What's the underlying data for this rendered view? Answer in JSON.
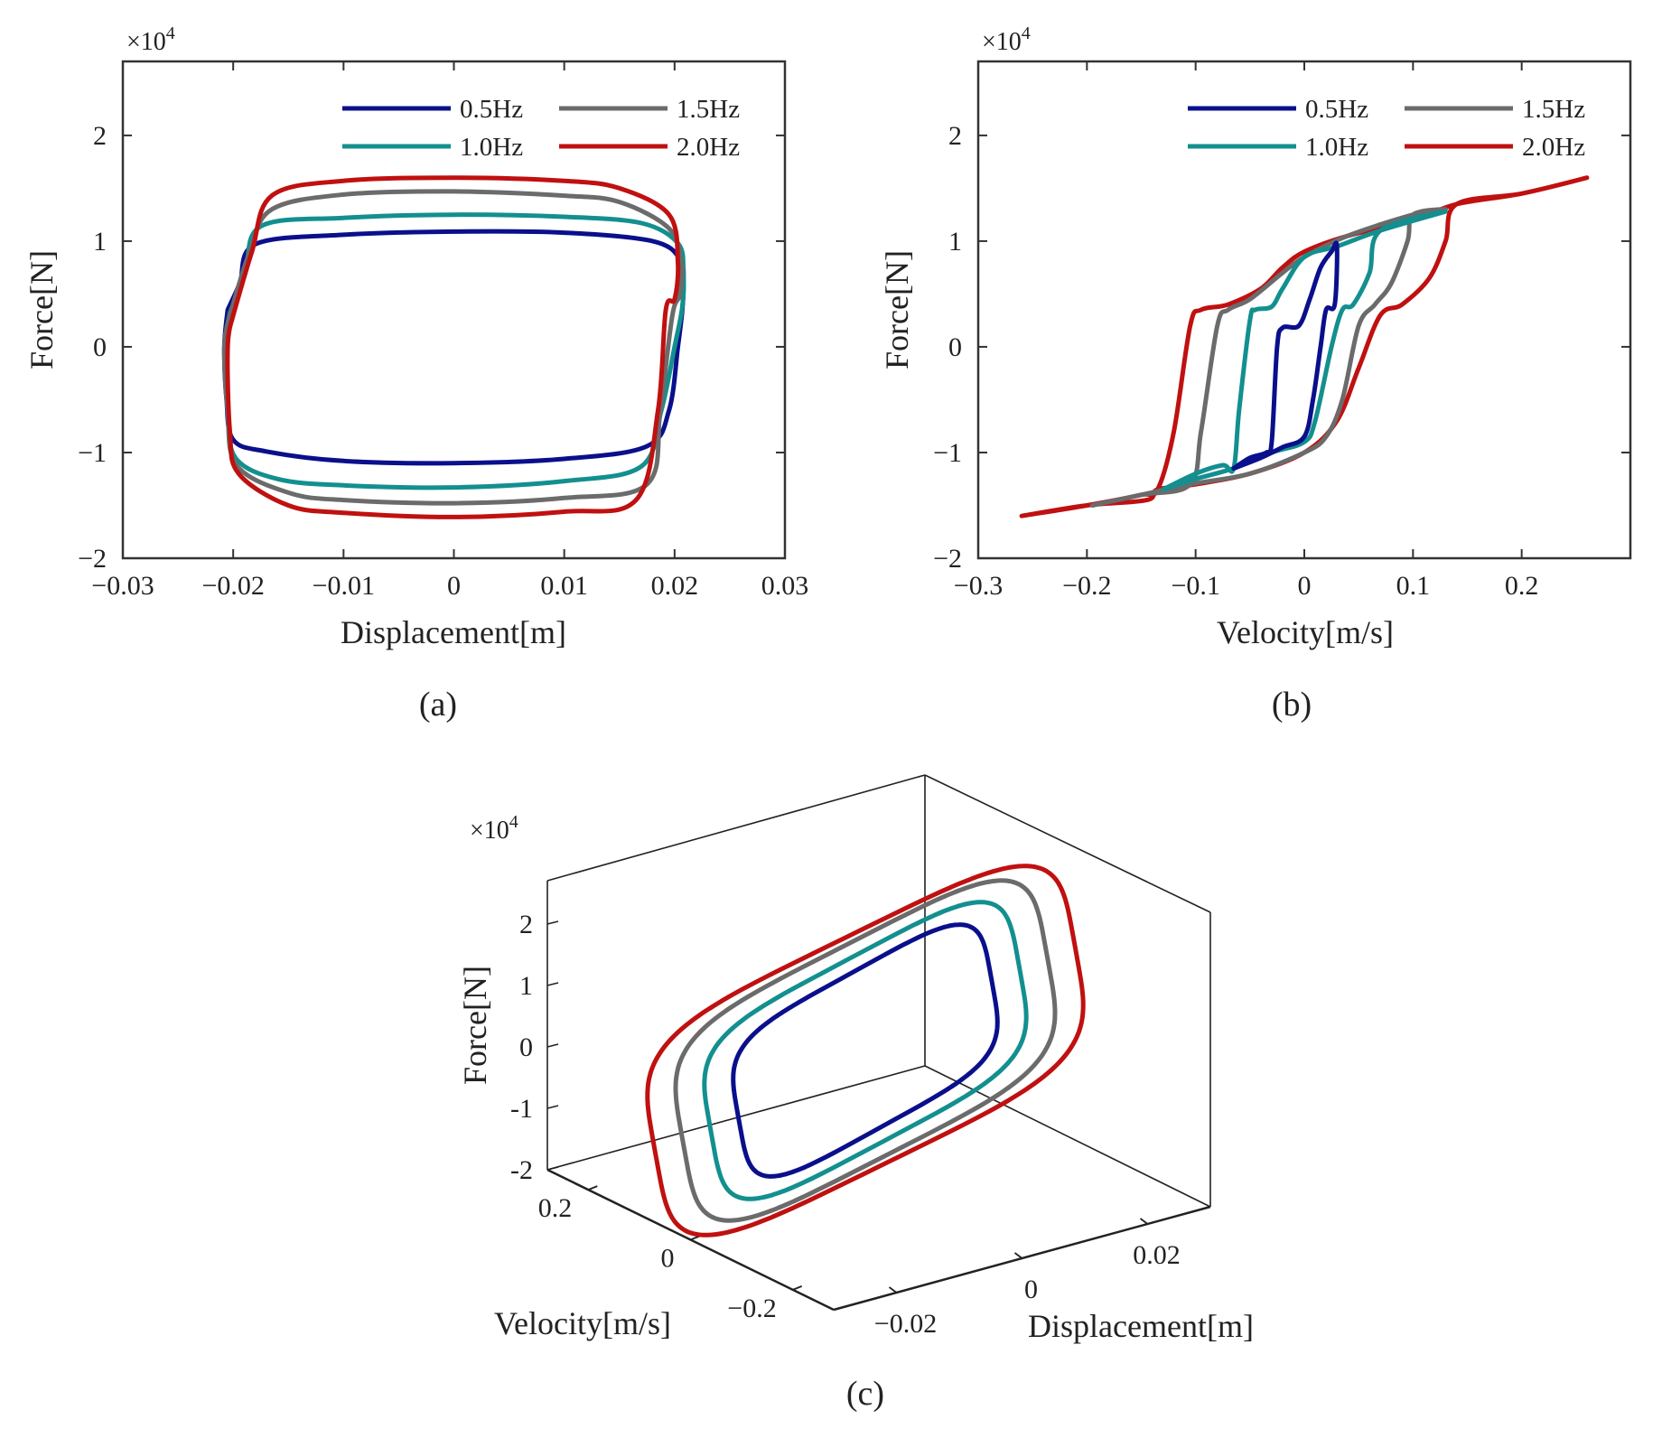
{
  "chart_data": [
    {
      "id": "a",
      "type": "line",
      "panel_label": "(a)",
      "xlabel": "Displacement[m]",
      "ylabel": "Force[N]",
      "exponent_label": "×10",
      "exponent_power": "4",
      "xlim": [
        -0.03,
        0.03
      ],
      "ylim": [
        -2,
        2.7
      ],
      "xticks": [
        -0.03,
        -0.02,
        -0.01,
        0,
        0.01,
        0.02,
        0.03
      ],
      "xtick_labels": [
        "−0.03",
        "−0.02",
        "−0.01",
        "0",
        "0.01",
        "0.02",
        "0.03"
      ],
      "yticks": [
        -2,
        -1,
        0,
        1,
        2
      ],
      "ytick_labels": [
        "−2",
        "−1",
        "0",
        "1",
        "2"
      ],
      "legend": [
        "0.5Hz",
        "1.0Hz",
        "1.5Hz",
        "2.0Hz"
      ],
      "legend_position": "top-right",
      "y_unit_note": "Force values in units of 10^4 N",
      "series": [
        {
          "name": "0.5Hz",
          "color": "#0a0f8c",
          "points": [
            [
              -0.0205,
              0.35
            ],
            [
              -0.0208,
              0
            ],
            [
              -0.0206,
              -0.5
            ],
            [
              -0.02,
              -0.88
            ],
            [
              -0.017,
              -0.99
            ],
            [
              -0.01,
              -1.08
            ],
            [
              0,
              -1.1
            ],
            [
              0.01,
              -1.06
            ],
            [
              0.0175,
              -0.94
            ],
            [
              0.0195,
              -0.6
            ],
            [
              0.0203,
              0
            ],
            [
              0.0207,
              0.35
            ],
            [
              0.0208,
              0.6
            ],
            [
              0.0205,
              0.83
            ],
            [
              0.018,
              1.0
            ],
            [
              0.01,
              1.08
            ],
            [
              0,
              1.09
            ],
            [
              -0.01,
              1.06
            ],
            [
              -0.018,
              0.97
            ],
            [
              -0.0194,
              0.6
            ],
            [
              -0.0205,
              0.35
            ]
          ]
        },
        {
          "name": "1.0Hz",
          "color": "#138f8f",
          "points": [
            [
              -0.0203,
              0.32
            ],
            [
              -0.0208,
              0
            ],
            [
              -0.0205,
              -0.6
            ],
            [
              -0.0198,
              -1.05
            ],
            [
              -0.016,
              -1.25
            ],
            [
              -0.01,
              -1.31
            ],
            [
              0,
              -1.33
            ],
            [
              0.01,
              -1.27
            ],
            [
              0.017,
              -1.13
            ],
            [
              0.0188,
              -0.6
            ],
            [
              0.02,
              0
            ],
            [
              0.0207,
              0.38
            ],
            [
              0.0208,
              0.7
            ],
            [
              0.0203,
              0.98
            ],
            [
              0.017,
              1.17
            ],
            [
              0.01,
              1.23
            ],
            [
              0,
              1.25
            ],
            [
              -0.01,
              1.22
            ],
            [
              -0.0175,
              1.14
            ],
            [
              -0.0189,
              0.7
            ],
            [
              -0.0203,
              0.32
            ]
          ]
        },
        {
          "name": "1.5Hz",
          "color": "#6b6b6b",
          "points": [
            [
              -0.0203,
              0.3
            ],
            [
              -0.0208,
              0
            ],
            [
              -0.0205,
              -0.6
            ],
            [
              -0.0197,
              -1.12
            ],
            [
              -0.015,
              -1.38
            ],
            [
              -0.01,
              -1.45
            ],
            [
              0,
              -1.48
            ],
            [
              0.01,
              -1.43
            ],
            [
              0.0175,
              -1.3
            ],
            [
              0.0187,
              -0.6
            ],
            [
              0.0198,
              0.3
            ],
            [
              0.0205,
              0.5
            ],
            [
              0.0206,
              0.8
            ],
            [
              0.0195,
              1.12
            ],
            [
              0.015,
              1.37
            ],
            [
              0.01,
              1.43
            ],
            [
              0,
              1.47
            ],
            [
              -0.01,
              1.44
            ],
            [
              -0.0165,
              1.3
            ],
            [
              -0.0185,
              0.9
            ],
            [
              -0.0203,
              0.3
            ]
          ]
        },
        {
          "name": "2.0Hz",
          "color": "#c01010",
          "points": [
            [
              -0.02,
              0.3
            ],
            [
              -0.0205,
              0
            ],
            [
              -0.0203,
              -0.8
            ],
            [
              -0.0195,
              -1.2
            ],
            [
              -0.015,
              -1.5
            ],
            [
              -0.01,
              -1.57
            ],
            [
              0,
              -1.61
            ],
            [
              0.01,
              -1.56
            ],
            [
              0.0165,
              -1.45
            ],
            [
              0.0185,
              -0.6
            ],
            [
              0.0192,
              0.35
            ],
            [
              0.02,
              0.45
            ],
            [
              0.0203,
              0.8
            ],
            [
              0.0195,
              1.25
            ],
            [
              0.015,
              1.5
            ],
            [
              0.01,
              1.57
            ],
            [
              0,
              1.6
            ],
            [
              -0.01,
              1.57
            ],
            [
              -0.0165,
              1.43
            ],
            [
              -0.0183,
              0.9
            ],
            [
              -0.02,
              0.3
            ]
          ]
        }
      ]
    },
    {
      "id": "b",
      "type": "line",
      "panel_label": "(b)",
      "xlabel": "Velocity[m/s]",
      "ylabel": "Force[N]",
      "exponent_label": "×10",
      "exponent_power": "4",
      "xlim": [
        -0.3,
        0.3
      ],
      "ylim": [
        -2,
        2.7
      ],
      "xticks": [
        -0.3,
        -0.2,
        -0.1,
        0,
        0.1,
        0.2
      ],
      "xtick_labels": [
        "−0.3",
        "−0.2",
        "−0.1",
        "0",
        "0.1",
        "0.2"
      ],
      "yticks": [
        -2,
        -1,
        0,
        1,
        2
      ],
      "ytick_labels": [
        "−2",
        "−1",
        "0",
        "1",
        "2"
      ],
      "legend": [
        "0.5Hz",
        "1.0Hz",
        "1.5Hz",
        "2.0Hz"
      ],
      "legend_position": "top-right",
      "y_unit_note": "Force values in units of 10^4 N",
      "series": [
        {
          "name": "2.0Hz",
          "color": "#c01010",
          "points": [
            [
              -0.26,
              -1.6
            ],
            [
              -0.2,
              -1.5
            ],
            [
              -0.15,
              -1.4
            ],
            [
              -0.135,
              -1.35
            ],
            [
              -0.12,
              -0.8
            ],
            [
              -0.105,
              0.2
            ],
            [
              -0.095,
              0.35
            ],
            [
              -0.07,
              0.4
            ],
            [
              -0.04,
              0.55
            ],
            [
              -0.02,
              0.75
            ],
            [
              0,
              0.9
            ],
            [
              0.04,
              1.05
            ],
            [
              0.1,
              1.2
            ],
            [
              0.14,
              1.35
            ],
            [
              0.2,
              1.45
            ],
            [
              0.26,
              1.6
            ],
            [
              0.2,
              1.45
            ],
            [
              0.14,
              1.35
            ],
            [
              0.13,
              1.0
            ],
            [
              0.115,
              0.65
            ],
            [
              0.09,
              0.4
            ],
            [
              0.07,
              0.3
            ],
            [
              0.05,
              -0.2
            ],
            [
              0.03,
              -0.7
            ],
            [
              0,
              -1.0
            ],
            [
              -0.05,
              -1.2
            ],
            [
              -0.1,
              -1.3
            ],
            [
              -0.135,
              -1.35
            ],
            [
              -0.145,
              -1.45
            ],
            [
              -0.2,
              -1.5
            ],
            [
              -0.26,
              -1.6
            ]
          ]
        },
        {
          "name": "1.5Hz",
          "color": "#6b6b6b",
          "points": [
            [
              -0.195,
              -1.5
            ],
            [
              -0.15,
              -1.4
            ],
            [
              -0.105,
              -1.3
            ],
            [
              -0.095,
              -0.8
            ],
            [
              -0.08,
              0.2
            ],
            [
              -0.07,
              0.35
            ],
            [
              -0.05,
              0.45
            ],
            [
              -0.02,
              0.7
            ],
            [
              0,
              0.85
            ],
            [
              0.04,
              1.05
            ],
            [
              0.1,
              1.25
            ],
            [
              0.13,
              1.3
            ],
            [
              0.1,
              1.25
            ],
            [
              0.095,
              1.0
            ],
            [
              0.08,
              0.6
            ],
            [
              0.065,
              0.4
            ],
            [
              0.05,
              0.2
            ],
            [
              0.035,
              -0.5
            ],
            [
              0.02,
              -0.85
            ],
            [
              0,
              -1.0
            ],
            [
              -0.05,
              -1.2
            ],
            [
              -0.105,
              -1.3
            ],
            [
              -0.15,
              -1.4
            ],
            [
              -0.195,
              -1.5
            ]
          ]
        },
        {
          "name": "1.0Hz",
          "color": "#138f8f",
          "points": [
            [
              -0.13,
              -1.35
            ],
            [
              -0.1,
              -1.2
            ],
            [
              -0.075,
              -1.12
            ],
            [
              -0.065,
              -1.15
            ],
            [
              -0.06,
              -0.6
            ],
            [
              -0.05,
              0.25
            ],
            [
              -0.045,
              0.35
            ],
            [
              -0.03,
              0.38
            ],
            [
              -0.02,
              0.55
            ],
            [
              0,
              0.85
            ],
            [
              0.03,
              0.95
            ],
            [
              0.07,
              1.1
            ],
            [
              0.13,
              1.28
            ],
            [
              0.07,
              1.1
            ],
            [
              0.06,
              0.7
            ],
            [
              0.045,
              0.4
            ],
            [
              0.035,
              0.35
            ],
            [
              0.025,
              0.0
            ],
            [
              0.01,
              -0.7
            ],
            [
              0,
              -0.9
            ],
            [
              -0.03,
              -1.0
            ],
            [
              -0.065,
              -1.15
            ],
            [
              -0.1,
              -1.25
            ],
            [
              -0.13,
              -1.35
            ]
          ]
        },
        {
          "name": "0.5Hz",
          "color": "#0a0f8c",
          "points": [
            [
              -0.065,
              -1.15
            ],
            [
              -0.05,
              -1.05
            ],
            [
              -0.035,
              -1.0
            ],
            [
              -0.03,
              -0.9
            ],
            [
              -0.025,
              0.0
            ],
            [
              -0.02,
              0.18
            ],
            [
              -0.005,
              0.2
            ],
            [
              0.005,
              0.45
            ],
            [
              0.015,
              0.75
            ],
            [
              0.025,
              0.9
            ],
            [
              0.03,
              0.95
            ],
            [
              0.028,
              0.4
            ],
            [
              0.02,
              0.35
            ],
            [
              0.015,
              0.0
            ],
            [
              0.008,
              -0.5
            ],
            [
              0,
              -0.85
            ],
            [
              -0.02,
              -0.95
            ],
            [
              -0.04,
              -1.05
            ],
            [
              -0.065,
              -1.15
            ]
          ]
        }
      ]
    },
    {
      "id": "c",
      "type": "line",
      "panel_label": "(c)",
      "xlabel": "Displacement[m]",
      "ylabel": "Force[N]",
      "zlabel": "Velocity[m/s]",
      "exponent_label": "×10",
      "exponent_power": "4",
      "force_ticks": [
        -2,
        -1,
        0,
        1,
        2
      ],
      "force_tick_labels": [
        "-2",
        "-1",
        "0",
        "1",
        "2"
      ],
      "displacement_ticks": [
        -0.02,
        0,
        0.02
      ],
      "displacement_tick_labels": [
        "−0.02",
        "0",
        "0.02"
      ],
      "velocity_ticks": [
        0.2,
        0,
        -0.2
      ],
      "velocity_tick_labels": [
        "0.2",
        "0",
        "−0.2"
      ],
      "series_order": [
        "0.5Hz",
        "1.0Hz",
        "1.5Hz",
        "2.0Hz"
      ],
      "series_colors": [
        "#0a0f8c",
        "#138f8f",
        "#6b6b6b",
        "#c01010"
      ],
      "peak_force": [
        1.1,
        1.3,
        1.5,
        1.6
      ]
    }
  ]
}
